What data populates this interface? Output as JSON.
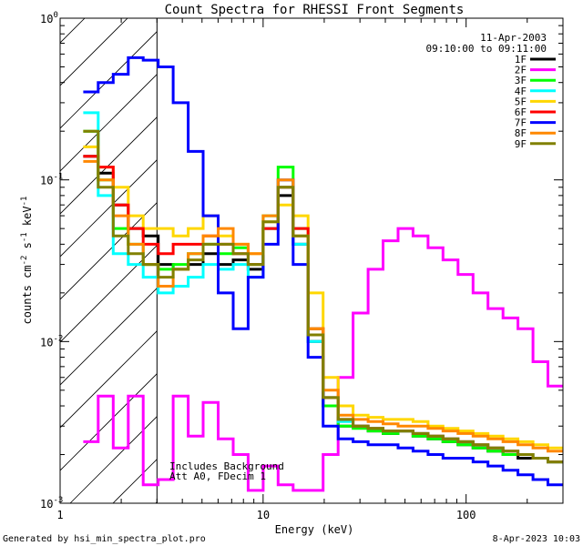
{
  "chart_data": {
    "type": "line",
    "title": "Count Spectra for RHESSI Front Segments",
    "xlabel": "Energy (keV)",
    "ylabel": "counts cm-2 s-1 keV-1",
    "xscale": "log",
    "yscale": "log",
    "xlim": [
      1,
      300
    ],
    "ylim": [
      0.001,
      1
    ],
    "x_ticks": [
      {
        "v": 1,
        "label": "1"
      },
      {
        "v": 10,
        "label": "10"
      },
      {
        "v": 100,
        "label": "100"
      }
    ],
    "y_ticks": [
      {
        "v": 1,
        "base": "10",
        "exp": "0"
      },
      {
        "v": 0.1,
        "base": "10",
        "exp": "-1"
      },
      {
        "v": 0.01,
        "base": "10",
        "exp": "-2"
      },
      {
        "v": 0.001,
        "base": "10",
        "exp": "-3"
      }
    ],
    "date_label": "11-Apr-2003",
    "time_range": "09:10:00 to 09:11:00",
    "shaded_region_max_kev": 3,
    "annotation_lines": [
      "Includes Background",
      "Att A0, FDecim 1"
    ],
    "series": [
      {
        "name": "1F",
        "color": "#000000",
        "y": [
          0.14,
          0.11,
          0.07,
          0.05,
          0.045,
          0.03,
          0.028,
          0.03,
          0.035,
          0.03,
          0.032,
          0.028,
          0.05,
          0.08,
          0.04,
          0.01,
          0.004,
          0.003,
          0.003,
          0.0028,
          0.0027,
          0.0028,
          0.0026,
          0.0025,
          0.0024,
          0.0023,
          0.0022,
          0.0021,
          0.002,
          0.0019,
          0.0019,
          0.0018
        ]
      },
      {
        "name": "2F",
        "color": "#ff00ff",
        "y": [
          0.0024,
          0.0046,
          0.0022,
          0.0046,
          0.0013,
          0.0014,
          0.0046,
          0.0026,
          0.0042,
          0.0025,
          0.002,
          0.0012,
          0.0017,
          0.0013,
          0.0012,
          0.0012,
          0.002,
          0.006,
          0.015,
          0.028,
          0.042,
          0.05,
          0.045,
          0.038,
          0.032,
          0.026,
          0.02,
          0.016,
          0.014,
          0.012,
          0.0075,
          0.0053
        ]
      },
      {
        "name": "3F",
        "color": "#00ff00",
        "y": [
          0.2,
          0.1,
          0.05,
          0.04,
          0.03,
          0.028,
          0.03,
          0.035,
          0.04,
          0.035,
          0.038,
          0.03,
          0.06,
          0.12,
          0.05,
          0.012,
          0.004,
          0.003,
          0.0029,
          0.0028,
          0.0027,
          0.0028,
          0.0026,
          0.0025,
          0.0024,
          0.0023,
          0.0022,
          0.0021,
          0.002,
          0.002,
          0.0019,
          0.0018
        ]
      },
      {
        "name": "4F",
        "color": "#00ffff",
        "y": [
          0.26,
          0.08,
          0.035,
          0.03,
          0.025,
          0.02,
          0.022,
          0.025,
          0.03,
          0.028,
          0.03,
          0.025,
          0.05,
          0.09,
          0.04,
          0.01,
          0.0045,
          0.0032,
          0.003,
          0.0029,
          0.0028,
          0.0028,
          0.0027,
          0.0026,
          0.0025,
          0.0024,
          0.0023,
          0.0022,
          0.0021,
          0.002,
          0.0019,
          0.0018
        ]
      },
      {
        "name": "5F",
        "color": "#ffd700",
        "y": [
          0.16,
          0.12,
          0.09,
          0.06,
          0.05,
          0.05,
          0.045,
          0.05,
          0.06,
          0.045,
          0.04,
          0.035,
          0.055,
          0.07,
          0.06,
          0.02,
          0.006,
          0.004,
          0.0035,
          0.0034,
          0.0033,
          0.0033,
          0.0032,
          0.003,
          0.0029,
          0.0028,
          0.0027,
          0.0026,
          0.0025,
          0.0024,
          0.0023,
          0.0022
        ]
      },
      {
        "name": "6F",
        "color": "#ff0000",
        "y": [
          0.14,
          0.12,
          0.07,
          0.05,
          0.04,
          0.035,
          0.04,
          0.04,
          0.045,
          0.04,
          0.035,
          0.03,
          0.05,
          0.09,
          0.05,
          0.012,
          0.0045,
          0.0033,
          0.003,
          0.0029,
          0.0028,
          0.0028,
          0.0027,
          0.0026,
          0.0025,
          0.0024,
          0.0023,
          0.0022,
          0.0021,
          0.002,
          0.0019,
          0.0018
        ]
      },
      {
        "name": "7F",
        "color": "#0000ff",
        "y": [
          0.35,
          0.4,
          0.45,
          0.57,
          0.55,
          0.5,
          0.3,
          0.15,
          0.06,
          0.02,
          0.012,
          0.025,
          0.04,
          0.1,
          0.03,
          0.008,
          0.003,
          0.0025,
          0.0024,
          0.0023,
          0.0023,
          0.0022,
          0.0021,
          0.002,
          0.0019,
          0.0019,
          0.0018,
          0.0017,
          0.0016,
          0.0015,
          0.0014,
          0.0013
        ]
      },
      {
        "name": "8F",
        "color": "#ff8800",
        "y": [
          0.13,
          0.1,
          0.06,
          0.04,
          0.03,
          0.022,
          0.028,
          0.035,
          0.045,
          0.05,
          0.04,
          0.035,
          0.06,
          0.1,
          0.045,
          0.012,
          0.005,
          0.0035,
          0.0033,
          0.0032,
          0.0031,
          0.003,
          0.003,
          0.0029,
          0.0028,
          0.0027,
          0.0026,
          0.0025,
          0.0024,
          0.0023,
          0.0022,
          0.0021
        ]
      },
      {
        "name": "9F",
        "color": "#808000",
        "y": [
          0.2,
          0.09,
          0.045,
          0.035,
          0.03,
          0.025,
          0.028,
          0.032,
          0.04,
          0.04,
          0.035,
          0.03,
          0.055,
          0.09,
          0.045,
          0.011,
          0.0045,
          0.0033,
          0.003,
          0.0029,
          0.0028,
          0.0028,
          0.0027,
          0.0026,
          0.0025,
          0.0024,
          0.0023,
          0.0022,
          0.0021,
          0.002,
          0.0019,
          0.0018
        ]
      }
    ]
  },
  "footer": {
    "left": "Generated by hsi_min_spectra_plot.pro",
    "right": "8-Apr-2023 10:03"
  }
}
